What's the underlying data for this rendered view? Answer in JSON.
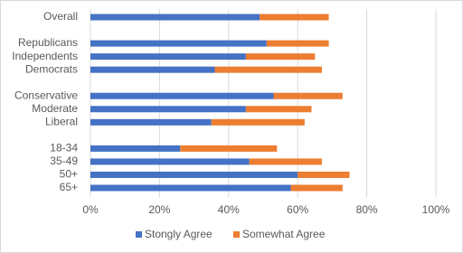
{
  "chart_data": {
    "type": "stacked-bar-horizontal",
    "categories": [
      "Overall",
      null,
      "Republicans",
      "Independents",
      "Democrats",
      null,
      "Conservative",
      "Moderate",
      "Liberal",
      null,
      "18-34",
      "35-49",
      "50+",
      "65+"
    ],
    "series": [
      {
        "name": "Stongly Agree",
        "color": "#4472c4",
        "values": [
          49,
          null,
          51,
          45,
          36,
          null,
          53,
          45,
          35,
          null,
          26,
          46,
          60,
          58
        ]
      },
      {
        "name": "Somewhat Agree",
        "color": "#ed7d31",
        "values": [
          20,
          null,
          18,
          20,
          31,
          null,
          20,
          19,
          27,
          null,
          28,
          21,
          15,
          15
        ]
      }
    ],
    "xlim": [
      0,
      100
    ],
    "xticks": [
      {
        "value": 0,
        "label": "0%"
      },
      {
        "value": 20,
        "label": "20%"
      },
      {
        "value": 40,
        "label": "40%"
      },
      {
        "value": 60,
        "label": "60%"
      },
      {
        "value": 80,
        "label": "80%"
      },
      {
        "value": 100,
        "label": "100%"
      }
    ],
    "grid": true,
    "legend": "bottom"
  }
}
